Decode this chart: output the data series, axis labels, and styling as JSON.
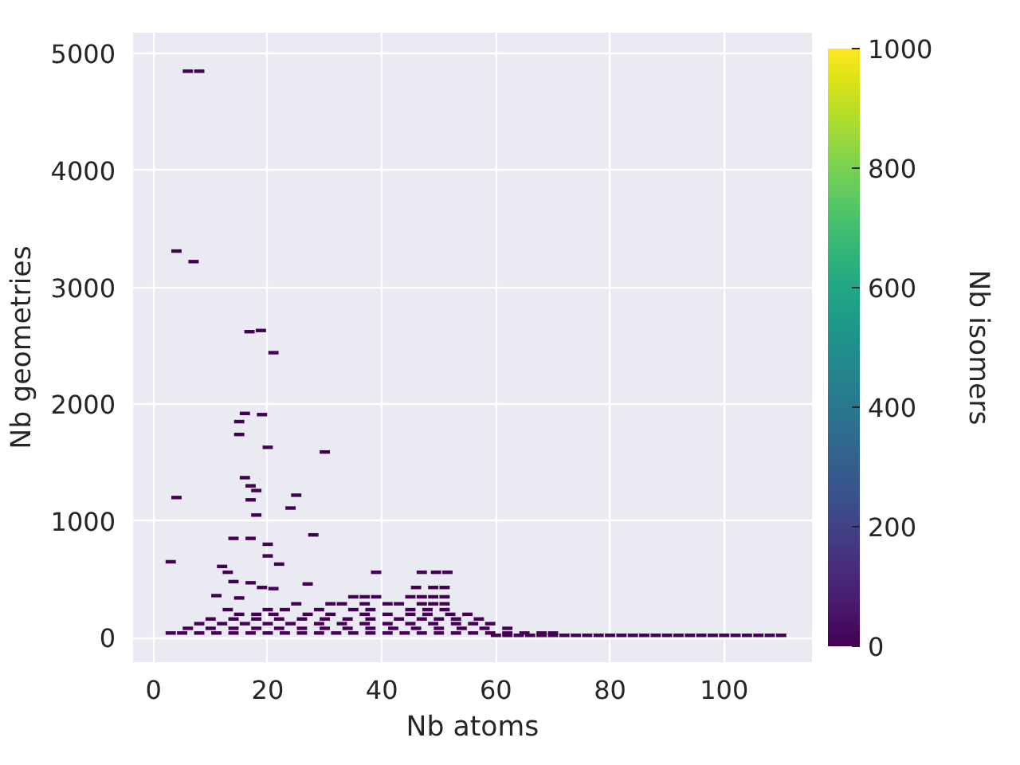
{
  "chart_data": {
    "type": "scatter",
    "xlabel": "Nb atoms",
    "ylabel": "Nb geometries",
    "clabel": "Nb isomers",
    "xlim": [
      -3.6,
      115.4
    ],
    "ylim": [
      -210,
      5180
    ],
    "xticks": [
      0,
      20,
      40,
      60,
      80,
      100
    ],
    "yticks": [
      0,
      1000,
      2000,
      3000,
      4000,
      5000
    ],
    "clim": [
      0,
      1000
    ],
    "cticks": [
      0,
      200,
      400,
      600,
      800,
      1000
    ],
    "grid": true,
    "series": [
      {
        "x": [
          6,
          8,
          4,
          7,
          18.8,
          16.8,
          21,
          16,
          19,
          15,
          15,
          20,
          30,
          4,
          17,
          18,
          16,
          17,
          25,
          24,
          18,
          20,
          28,
          14,
          17,
          20,
          22,
          3,
          12,
          13,
          14,
          17,
          19,
          21,
          27,
          11,
          15
        ],
        "values": [
          4850,
          4850,
          3310,
          3220,
          2630,
          2620,
          2440,
          1920,
          1910,
          1850,
          1740,
          1630,
          1590,
          1200,
          1300,
          1260,
          1370,
          1180,
          1220,
          1110,
          1050,
          800,
          880,
          850,
          850,
          700,
          630,
          650,
          610,
          560,
          480,
          470,
          430,
          420,
          460,
          360,
          340
        ],
        "color": "#440154"
      },
      {
        "x": [
          39,
          47,
          49.5,
          51.5,
          46,
          49,
          51,
          35,
          37,
          39,
          45,
          47,
          49,
          51
        ],
        "values": [
          560,
          560,
          560,
          560,
          430,
          430,
          430,
          350,
          350,
          350,
          350,
          350,
          350,
          350
        ],
        "color": "#440154"
      },
      {
        "x": [
          25,
          31,
          33,
          37,
          41,
          43,
          47,
          49,
          51,
          13,
          20,
          23,
          29,
          35,
          38,
          45,
          48,
          51
        ],
        "values": [
          290,
          290,
          290,
          290,
          290,
          290,
          290,
          290,
          290,
          240,
          240,
          240,
          240,
          240,
          240,
          240,
          240,
          240
        ],
        "color": "#440154"
      },
      {
        "x": [
          15,
          18,
          21,
          27,
          31,
          37,
          41,
          45,
          48,
          52,
          55
        ],
        "values": [
          200,
          200,
          200,
          200,
          200,
          200,
          200,
          200,
          200,
          200,
          200
        ],
        "color": "#440154"
      },
      {
        "x": [
          10,
          14,
          18,
          22,
          26,
          30,
          34,
          38,
          43,
          47,
          50,
          53,
          57
        ],
        "values": [
          160,
          160,
          160,
          160,
          160,
          160,
          160,
          160,
          160,
          160,
          160,
          160,
          160
        ],
        "color": "#440154"
      },
      {
        "x": [
          8,
          12,
          16,
          20,
          24,
          29,
          33,
          37,
          41,
          45,
          49,
          53,
          56,
          59
        ],
        "values": [
          120,
          120,
          120,
          120,
          120,
          120,
          120,
          120,
          120,
          120,
          120,
          120,
          120,
          120
        ],
        "color": "#440154"
      },
      {
        "x": [
          6,
          10,
          14,
          18,
          22,
          26,
          30,
          34,
          38,
          42,
          46,
          50,
          54,
          58,
          62
        ],
        "values": [
          80,
          80,
          80,
          80,
          80,
          80,
          80,
          80,
          80,
          80,
          80,
          80,
          80,
          80,
          80
        ],
        "color": "#440154"
      },
      {
        "x": [
          3,
          5,
          8,
          11,
          14,
          17,
          20,
          23,
          26,
          29,
          32,
          35,
          38,
          41,
          44,
          47,
          50,
          53,
          56,
          59,
          62,
          65,
          68,
          70
        ],
        "values": [
          40,
          40,
          40,
          40,
          40,
          40,
          40,
          40,
          40,
          40,
          40,
          40,
          40,
          40,
          40,
          40,
          40,
          40,
          40,
          40,
          40,
          40,
          40,
          40
        ],
        "color": "#440154"
      },
      {
        "x": [
          60,
          62,
          64,
          66,
          68,
          70,
          72,
          74,
          76,
          78,
          80,
          82,
          84,
          86,
          88,
          90,
          92,
          94,
          96,
          98,
          100,
          102,
          104,
          106,
          108,
          110
        ],
        "values": [
          20,
          20,
          20,
          20,
          20,
          20,
          20,
          20,
          20,
          20,
          20,
          20,
          20,
          20,
          20,
          20,
          20,
          20,
          20,
          20,
          20,
          20,
          20,
          20,
          20,
          20
        ],
        "color": "#440154"
      }
    ]
  }
}
